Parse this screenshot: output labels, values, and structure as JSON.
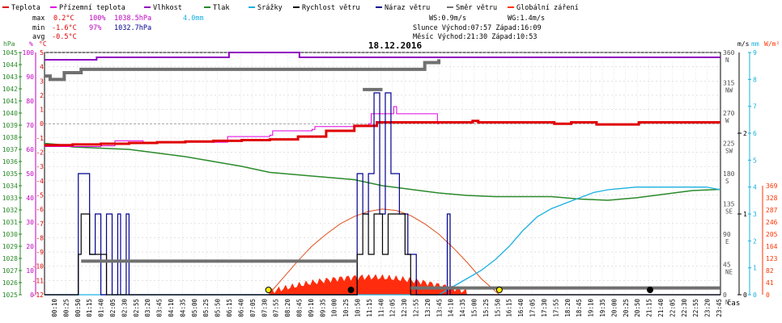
{
  "chart_data": {
    "type": "line",
    "title": "18.12.2016",
    "xlabel": "čas",
    "legend": [
      {
        "name": "Teplota",
        "color": "#e00000"
      },
      {
        "name": "Přízemní teplota",
        "color": "#e000e0"
      },
      {
        "name": "Vlhkost",
        "color": "#9000c0"
      },
      {
        "name": "Tlak",
        "color": "#2a8a2a"
      },
      {
        "name": "Srážky",
        "color": "#1ab0e0"
      },
      {
        "name": "Rychlost větru",
        "color": "#000000"
      },
      {
        "name": "Náraz větru",
        "color": "#000090"
      },
      {
        "name": "Směr větru",
        "color": "#707070"
      },
      {
        "name": "Globální záření",
        "color": "#ff3300"
      }
    ],
    "stats": {
      "max": {
        "label": "max",
        "temp": "0.2°C",
        "hum": "100%",
        "press": "1038.5hPa",
        "rain": "4.0mm"
      },
      "min": {
        "label": "min",
        "temp": "-1.6°C",
        "hum": "97%",
        "press": "1032.7hPa"
      },
      "avg": {
        "label": "avg",
        "temp": "-0.5°C"
      }
    },
    "info": {
      "ws": "WS:0.9m/s",
      "wg": "WG:1.4m/s",
      "sun": "Slunce Východ:07:57  Západ:16:09",
      "moon": "Měsíc  Východ:21:30  Západ:10:53"
    },
    "axes": {
      "hpa": {
        "unit": "hPa",
        "color": "#2a8a2a",
        "ticks": [
          "1045",
          "1044",
          "1043",
          "1042",
          "1041",
          "1040",
          "1039",
          "1038",
          "1037",
          "1036",
          "1035",
          "1034",
          "1033",
          "1032",
          "1031",
          "1030",
          "1029",
          "1028",
          "1027",
          "1026",
          "1025"
        ]
      },
      "pct": {
        "unit": "%",
        "color": "#c000c0",
        "ticks": [
          "100",
          "90",
          "80",
          "70",
          "60",
          "50",
          "40",
          "30",
          "20",
          "10",
          "0"
        ]
      },
      "degc": {
        "unit": "°C",
        "color": "#e00000",
        "ticks": [
          "5",
          "4",
          "3",
          "2",
          "1",
          "0",
          "-1",
          "-2",
          "-3",
          "-4",
          "-5",
          "-6",
          "-7",
          "-8",
          "-9",
          "-10",
          "-11",
          "-12"
        ]
      },
      "dir": {
        "unit": "°",
        "color": "#505050",
        "ticks": [
          {
            "v": "360",
            "l": "N"
          },
          {
            "v": "315",
            "l": "NW"
          },
          {
            "v": "270",
            "l": "W"
          },
          {
            "v": "225",
            "l": "SW"
          },
          {
            "v": "180",
            "l": "S"
          },
          {
            "v": "135",
            "l": "SE"
          },
          {
            "v": "90",
            "l": "E"
          },
          {
            "v": "45",
            "l": "NE"
          },
          {
            "v": "0",
            "l": "N"
          }
        ]
      },
      "ms": {
        "unit": "m/s",
        "color": "#000000",
        "ticks": [
          "2",
          "1",
          "0"
        ]
      },
      "mm": {
        "unit": "mm",
        "color": "#1ab0e0",
        "ticks": [
          "9",
          "8",
          "7",
          "6",
          "5",
          "4",
          "3",
          "2",
          "1",
          "0"
        ]
      },
      "wm2": {
        "unit": "W/m²",
        "color": "#ff3300",
        "ticks": [
          "369",
          "328",
          "287",
          "246",
          "205",
          "164",
          "123",
          "82",
          "41",
          "0"
        ]
      }
    },
    "x_ticks": [
      "00:10",
      "00:25",
      "00:50",
      "01:15",
      "01:40",
      "02:05",
      "02:30",
      "02:55",
      "03:20",
      "03:45",
      "04:10",
      "04:35",
      "05:00",
      "05:25",
      "05:50",
      "06:15",
      "06:40",
      "07:05",
      "07:30",
      "07:55",
      "08:20",
      "08:45",
      "09:10",
      "09:35",
      "10:00",
      "10:25",
      "10:50",
      "11:15",
      "11:40",
      "12:05",
      "12:30",
      "12:55",
      "13:20",
      "13:45",
      "14:10",
      "14:35",
      "15:00",
      "15:25",
      "15:50",
      "16:15",
      "16:40",
      "17:05",
      "17:30",
      "17:55",
      "18:20",
      "18:45",
      "19:10",
      "19:35",
      "20:00",
      "20:25",
      "20:50",
      "21:15",
      "21:40",
      "22:05",
      "22:30",
      "22:55",
      "23:20",
      "23:45"
    ],
    "x_range_hours": [
      0,
      24
    ],
    "series": {
      "teplota": {
        "unit": "°C",
        "points": [
          [
            0,
            -1.5
          ],
          [
            1,
            -1.45
          ],
          [
            2,
            -1.4
          ],
          [
            3,
            -1.35
          ],
          [
            4,
            -1.3
          ],
          [
            5,
            -1.25
          ],
          [
            6,
            -1.2
          ],
          [
            7,
            -1.15
          ],
          [
            8,
            -1.1
          ],
          [
            9,
            -0.9
          ],
          [
            10,
            -0.5
          ],
          [
            11,
            -0.15
          ],
          [
            11.8,
            0.1
          ],
          [
            14,
            0.1
          ],
          [
            15,
            0.1
          ],
          [
            15.2,
            0.2
          ],
          [
            15.4,
            0.1
          ],
          [
            17,
            0.1
          ],
          [
            18,
            0.1
          ],
          [
            18.1,
            0.0
          ],
          [
            18.6,
            0.0
          ],
          [
            18.7,
            0.1
          ],
          [
            19.5,
            0.1
          ],
          [
            19.6,
            -0.05
          ],
          [
            21,
            -0.05
          ],
          [
            21.1,
            0.1
          ],
          [
            24,
            0.1
          ]
        ]
      },
      "prizemni_teplota": {
        "unit": "°C",
        "points": [
          [
            0,
            -1.6
          ],
          [
            2,
            -1.55
          ],
          [
            2.5,
            -1.2
          ],
          [
            3.5,
            -1.3
          ],
          [
            6.5,
            -0.9
          ],
          [
            8,
            -0.8
          ],
          [
            8.1,
            -0.5
          ],
          [
            9.5,
            -0.4
          ],
          [
            9.6,
            -0.2
          ],
          [
            11.5,
            0.0
          ],
          [
            11.6,
            0.7
          ],
          [
            12.3,
            0.7
          ],
          [
            12.4,
            1.2
          ],
          [
            12.5,
            0.7
          ],
          [
            13.9,
            0.7
          ],
          [
            13.95,
            0.0
          ],
          [
            14,
            0.05
          ]
        ]
      },
      "vlhkost": {
        "unit": "%",
        "points": [
          [
            0,
            97
          ],
          [
            1.8,
            97
          ],
          [
            1.85,
            98
          ],
          [
            6.5,
            98
          ],
          [
            6.55,
            100
          ],
          [
            9,
            100
          ],
          [
            9.05,
            98
          ],
          [
            24,
            98
          ]
        ]
      },
      "tlak": {
        "unit": "hPa",
        "points": [
          [
            0,
            1037.5
          ],
          [
            0.5,
            1037.4
          ],
          [
            1,
            1037.2
          ],
          [
            2,
            1037.1
          ],
          [
            3,
            1037.0
          ],
          [
            4,
            1036.7
          ],
          [
            5,
            1036.4
          ],
          [
            6,
            1036.0
          ],
          [
            7,
            1035.6
          ],
          [
            8,
            1035.1
          ],
          [
            9,
            1034.9
          ],
          [
            10,
            1034.7
          ],
          [
            11,
            1034.5
          ],
          [
            12,
            1034.0
          ],
          [
            13,
            1033.7
          ],
          [
            14,
            1033.4
          ],
          [
            15,
            1033.2
          ],
          [
            16,
            1033.1
          ],
          [
            17,
            1033.1
          ],
          [
            18,
            1033.1
          ],
          [
            19,
            1032.9
          ],
          [
            20,
            1032.8
          ],
          [
            21,
            1033.0
          ],
          [
            22,
            1033.3
          ],
          [
            23,
            1033.6
          ],
          [
            24,
            1033.7
          ]
        ]
      },
      "srazky": {
        "unit": "mm",
        "points": [
          [
            0,
            0
          ],
          [
            14,
            0
          ],
          [
            14.5,
            0.3
          ],
          [
            15,
            0.6
          ],
          [
            15.5,
            0.9
          ],
          [
            16,
            1.3
          ],
          [
            16.5,
            1.8
          ],
          [
            17,
            2.4
          ],
          [
            17.5,
            2.9
          ],
          [
            18,
            3.2
          ],
          [
            18.5,
            3.4
          ],
          [
            19,
            3.6
          ],
          [
            19.5,
            3.8
          ],
          [
            20,
            3.9
          ],
          [
            21,
            4.0
          ],
          [
            23.5,
            4.0
          ],
          [
            24,
            3.9
          ]
        ]
      },
      "rychlost_vetru": {
        "unit": "m/s",
        "points": [
          [
            0,
            0
          ],
          [
            1.1,
            0
          ],
          [
            1.2,
            0.5
          ],
          [
            1.3,
            1.0
          ],
          [
            1.5,
            1.0
          ],
          [
            1.6,
            0.5
          ],
          [
            2.0,
            0.5
          ],
          [
            2.2,
            0.0
          ],
          [
            11.0,
            0.0
          ],
          [
            11.1,
            0.5
          ],
          [
            11.3,
            1.0
          ],
          [
            11.5,
            0.5
          ],
          [
            11.7,
            1.0
          ],
          [
            12.0,
            0.5
          ],
          [
            12.2,
            1.0
          ],
          [
            12.6,
            1.0
          ],
          [
            12.8,
            0.5
          ],
          [
            13.0,
            0.0
          ],
          [
            24,
            0
          ]
        ]
      },
      "naraz_vetru": {
        "unit": "m/s",
        "points": [
          [
            0,
            0
          ],
          [
            1.1,
            0
          ],
          [
            1.2,
            1.5
          ],
          [
            1.4,
            1.5
          ],
          [
            1.6,
            0.5
          ],
          [
            1.8,
            1.0
          ],
          [
            2.0,
            0.0
          ],
          [
            2.2,
            1.0
          ],
          [
            2.4,
            0.0
          ],
          [
            2.6,
            1.0
          ],
          [
            2.7,
            0.0
          ],
          [
            2.9,
            1.0
          ],
          [
            3.0,
            0.0
          ],
          [
            11.0,
            0.0
          ],
          [
            11.1,
            1.5
          ],
          [
            11.3,
            1.0
          ],
          [
            11.5,
            1.5
          ],
          [
            11.7,
            2.5
          ],
          [
            11.9,
            1.0
          ],
          [
            12.1,
            2.5
          ],
          [
            12.3,
            1.5
          ],
          [
            12.6,
            1.0
          ],
          [
            12.9,
            0.5
          ],
          [
            13.2,
            0.0
          ],
          [
            14.2,
            0.0
          ],
          [
            14.3,
            1.0
          ],
          [
            14.4,
            0.0
          ],
          [
            24,
            0
          ]
        ]
      },
      "smer_vetru": {
        "unit": "°",
        "points": [
          [
            0,
            325
          ],
          [
            0.2,
            320
          ],
          [
            0.6,
            320
          ],
          [
            0.7,
            330
          ],
          [
            1.3,
            335
          ],
          [
            13.5,
            345
          ],
          [
            14.0,
            350
          ]
        ]
      },
      "smer_vetru_flat": {
        "unit": "°",
        "points": [
          [
            1.3,
            50
          ],
          [
            11.1,
            50
          ]
        ]
      },
      "smer_vetru_flat2": {
        "unit": "°",
        "points": [
          [
            11.3,
            305
          ],
          [
            12.0,
            305
          ]
        ]
      },
      "smer_vetru_low": {
        "unit": "°",
        "points": [
          [
            13,
            10
          ],
          [
            24,
            10
          ]
        ]
      },
      "globalni_zareni": {
        "unit": "W/m²",
        "points": [
          [
            7.95,
            0
          ],
          [
            8.5,
            60
          ],
          [
            9,
            115
          ],
          [
            9.5,
            165
          ],
          [
            10,
            205
          ],
          [
            10.5,
            240
          ],
          [
            11,
            265
          ],
          [
            11.5,
            282
          ],
          [
            12,
            290
          ],
          [
            12.5,
            285
          ],
          [
            13,
            268
          ],
          [
            13.5,
            240
          ],
          [
            14,
            205
          ],
          [
            14.5,
            160
          ],
          [
            15,
            110
          ],
          [
            15.5,
            55
          ],
          [
            16.15,
            0
          ]
        ]
      },
      "sun_markers": [
        7.95,
        16.15
      ],
      "moon_markers": [
        10.88,
        21.5
      ]
    }
  }
}
